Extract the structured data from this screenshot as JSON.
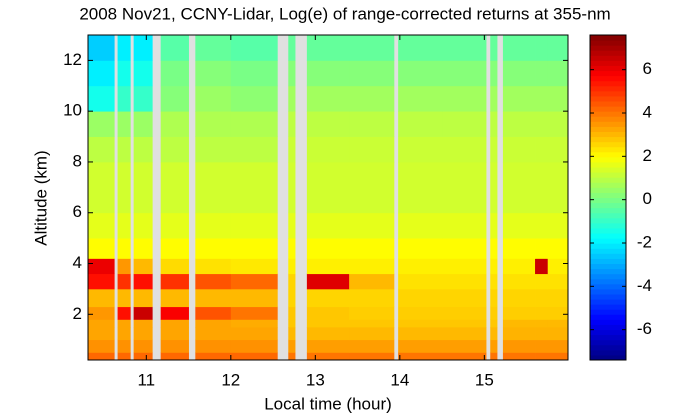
{
  "chart_data": {
    "type": "heatmap",
    "title": "2008 Nov21, CCNY-Lidar, Log(e) of range-corrected returns at 355-nm",
    "x_label": "Local time (hour)",
    "y_label": "Altitude (km)",
    "x_edges": [
      10.31,
      10.62,
      10.66,
      10.81,
      10.85,
      11.07,
      11.17,
      11.5,
      11.58,
      12.0,
      12.55,
      12.68,
      12.76,
      12.9,
      13.4,
      13.93,
      13.98,
      14.5,
      15.02,
      15.07,
      15.15,
      15.22,
      15.6,
      15.75,
      15.99
    ],
    "y_edges": [
      0.2,
      0.5,
      1,
      1.5,
      1.8,
      2.3,
      3,
      3.6,
      4.2,
      5,
      6,
      8,
      9,
      10,
      11,
      12,
      13
    ],
    "values": [
      [
        4.2,
        null,
        4.2,
        null,
        4.2,
        null,
        4.2,
        null,
        4.2,
        4.2,
        null,
        4.0,
        null,
        4.0,
        4.0,
        null,
        4.0,
        4.0,
        null,
        4.0,
        null,
        4.0,
        4.0,
        4.0
      ],
      [
        3.6,
        null,
        3.6,
        null,
        3.6,
        null,
        3.6,
        null,
        3.6,
        3.6,
        null,
        3.4,
        null,
        3.4,
        3.4,
        null,
        3.4,
        3.4,
        null,
        3.4,
        null,
        3.5,
        3.5,
        3.5
      ],
      [
        3.3,
        null,
        3.3,
        null,
        3.3,
        null,
        3.3,
        null,
        3.3,
        3.3,
        null,
        3.0,
        null,
        3.0,
        3.0,
        null,
        3.0,
        3.0,
        null,
        3.0,
        null,
        3.1,
        3.1,
        3.1
      ],
      [
        3.3,
        null,
        3.3,
        null,
        3.3,
        null,
        3.3,
        null,
        3.3,
        3.2,
        null,
        2.8,
        null,
        2.8,
        2.8,
        null,
        2.8,
        2.8,
        null,
        2.8,
        null,
        3.0,
        3.0,
        3.0
      ],
      [
        3.5,
        null,
        5.5,
        null,
        6.5,
        null,
        5.8,
        null,
        4.5,
        4.0,
        null,
        2.8,
        null,
        2.8,
        2.7,
        null,
        2.7,
        2.7,
        null,
        2.7,
        null,
        2.7,
        2.7,
        2.7
      ],
      [
        3.0,
        null,
        3.0,
        null,
        3.0,
        null,
        3.0,
        null,
        3.0,
        3.0,
        null,
        2.6,
        null,
        2.6,
        2.6,
        null,
        2.6,
        2.6,
        null,
        2.6,
        null,
        2.6,
        2.6,
        2.6
      ],
      [
        5.5,
        null,
        5.0,
        null,
        5.5,
        null,
        5.0,
        null,
        4.5,
        4.2,
        null,
        2.6,
        null,
        6.2,
        3.0,
        null,
        2.4,
        2.4,
        null,
        2.4,
        null,
        2.4,
        2.4,
        2.4
      ],
      [
        6.0,
        null,
        3.5,
        null,
        3.0,
        null,
        2.5,
        null,
        2.4,
        2.3,
        null,
        2.2,
        null,
        2.2,
        2.2,
        null,
        2.2,
        2.2,
        null,
        2.2,
        null,
        2.2,
        6.5,
        2.2
      ],
      [
        2.0,
        null,
        2.0,
        null,
        2.0,
        null,
        2.0,
        null,
        2.0,
        2.0,
        null,
        2.0,
        null,
        2.0,
        2.0,
        null,
        2.0,
        2.0,
        null,
        2.0,
        null,
        2.0,
        2.0,
        2.0
      ],
      [
        1.6,
        null,
        1.6,
        null,
        1.6,
        null,
        1.6,
        null,
        1.6,
        1.6,
        null,
        1.6,
        null,
        1.6,
        1.6,
        null,
        1.6,
        1.6,
        null,
        1.6,
        null,
        1.6,
        1.6,
        1.6
      ],
      [
        1.3,
        null,
        1.3,
        null,
        1.3,
        null,
        1.3,
        null,
        1.3,
        1.3,
        null,
        1.3,
        null,
        1.3,
        1.3,
        null,
        1.3,
        1.3,
        null,
        1.3,
        null,
        1.3,
        1.3,
        1.3
      ],
      [
        1.0,
        null,
        1.0,
        null,
        1.0,
        null,
        1.0,
        null,
        1.0,
        1.0,
        null,
        1.2,
        null,
        1.2,
        1.2,
        null,
        1.2,
        1.2,
        null,
        1.2,
        null,
        1.2,
        1.2,
        1.2
      ],
      [
        0.5,
        null,
        0.5,
        null,
        0.5,
        null,
        0.8,
        null,
        0.8,
        0.8,
        null,
        1.0,
        null,
        1.0,
        1.0,
        null,
        1.0,
        1.0,
        null,
        1.0,
        null,
        1.0,
        1.0,
        1.0
      ],
      [
        -1.5,
        null,
        -1.0,
        null,
        -1.0,
        null,
        0.2,
        null,
        0.5,
        0.3,
        null,
        0.6,
        null,
        0.6,
        0.6,
        null,
        0.6,
        0.6,
        null,
        0.6,
        null,
        0.6,
        0.6,
        0.6
      ],
      [
        -2.0,
        null,
        -1.5,
        null,
        -1.5,
        null,
        0.0,
        null,
        0.2,
        0.0,
        null,
        0.2,
        null,
        0.2,
        0.2,
        null,
        0.2,
        0.2,
        null,
        0.2,
        null,
        0.2,
        0.2,
        0.2
      ],
      [
        -2.5,
        null,
        -2.0,
        null,
        -2.0,
        null,
        -0.5,
        null,
        -0.3,
        -0.5,
        null,
        -0.3,
        null,
        -0.3,
        -0.3,
        null,
        -0.3,
        -0.3,
        null,
        -0.3,
        null,
        -0.3,
        -0.3,
        -0.3
      ]
    ],
    "xlim": [
      10.31,
      15.99
    ],
    "ylim": [
      0.2,
      13
    ],
    "xticks": [
      11,
      12,
      13,
      14,
      15
    ],
    "yticks": [
      2,
      4,
      6,
      8,
      10,
      12
    ],
    "clim": [
      -7.4,
      7.6
    ],
    "cticks": [
      -6,
      -4,
      -2,
      0,
      2,
      4,
      6
    ],
    "colormap": "jet",
    "gap_color": "#e0e0e0"
  }
}
